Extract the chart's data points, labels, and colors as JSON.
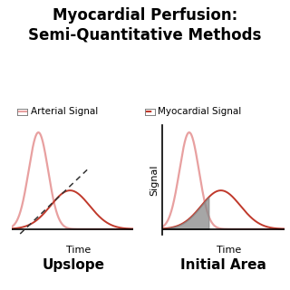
{
  "title_line1": "Myocardial Perfusion:",
  "title_line2": "Semi-Quantitative Methods",
  "title_fontsize": 12,
  "legend_arterial": "Arterial Signal",
  "legend_myocardial": "Myocardial Signal",
  "arterial_color": "#e8a0a0",
  "myocardial_color": "#c0392b",
  "dashed_color": "#333333",
  "label_upslope": "Upslope",
  "label_initial_area": "Initial Area",
  "xlabel": "Time",
  "ylabel": "Signal",
  "background": "#ffffff",
  "shaded_color": "#888888",
  "legend_box_arterial": "#e8a0a0",
  "legend_box_myocardial": "#c0392b"
}
